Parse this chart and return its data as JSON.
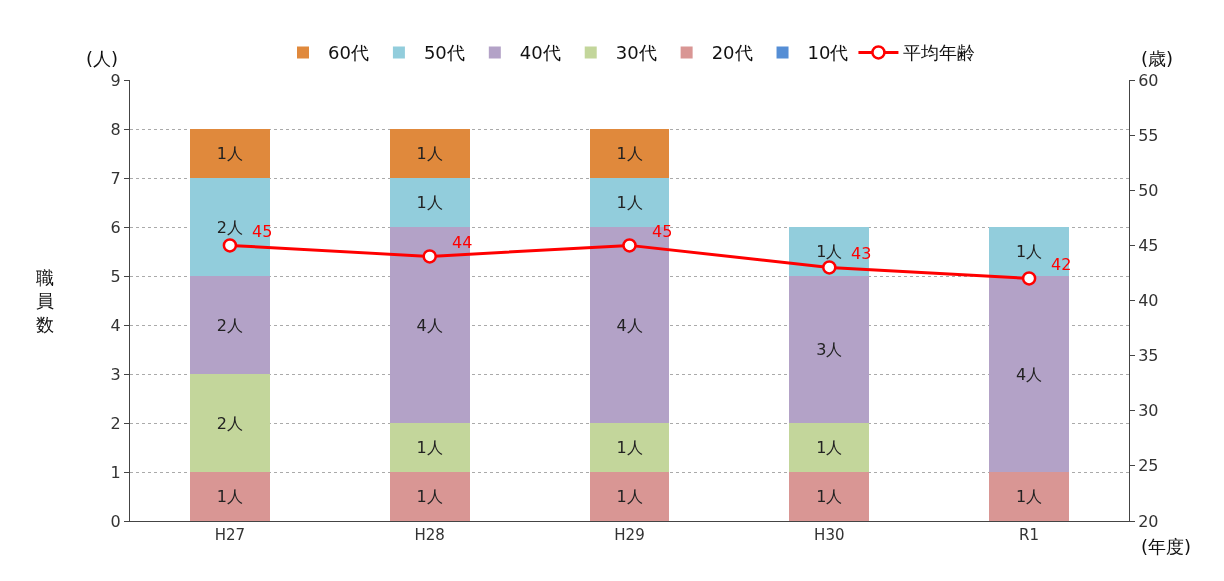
{
  "chart_data": {
    "type": "bar",
    "stacked": true,
    "categories": [
      "H27",
      "H28",
      "H29",
      "H30",
      "R1"
    ],
    "ylabel": "職員数",
    "ylim": [
      0,
      9
    ],
    "yticks": [
      0,
      1,
      2,
      3,
      4,
      5,
      6,
      7,
      8,
      9
    ],
    "y2lim": [
      20,
      60
    ],
    "y2ticks": [
      20,
      25,
      30,
      35,
      40,
      45,
      50,
      55,
      60
    ],
    "grid": "y",
    "legend": "top",
    "series": [
      {
        "name": "平均年齢",
        "type": "line",
        "axis": "y2",
        "color": "#ff0000",
        "marker": "circle",
        "values": [
          45,
          44,
          45,
          43,
          42
        ],
        "value_labels": [
          "45",
          "44",
          "45",
          "43",
          "42"
        ]
      },
      {
        "name": "10代",
        "color": "#558ed5",
        "values": [
          0,
          0,
          0,
          0,
          0
        ],
        "value_labels": [
          null,
          null,
          null,
          null,
          null
        ]
      },
      {
        "name": "20代",
        "color": "#d99694",
        "values": [
          1,
          1,
          1,
          1,
          1
        ],
        "value_labels": [
          "1人",
          "1人",
          "1人",
          "1人",
          "1人"
        ]
      },
      {
        "name": "30代",
        "color": "#c3d69b",
        "values": [
          2,
          1,
          1,
          1,
          0
        ],
        "value_labels": [
          "2人",
          "1人",
          "1人",
          "1人",
          null
        ]
      },
      {
        "name": "40代",
        "color": "#b3a2c7",
        "values": [
          2,
          4,
          4,
          3,
          4
        ],
        "value_labels": [
          "2人",
          "4人",
          "4人",
          "3人",
          "4人"
        ]
      },
      {
        "name": "50代",
        "color": "#92cddc",
        "values": [
          2,
          1,
          1,
          1,
          1
        ],
        "value_labels": [
          "2人",
          "1人",
          "1人",
          "1人",
          "1人"
        ]
      },
      {
        "name": "60代",
        "color": "#e0893c",
        "values": [
          1,
          1,
          1,
          0,
          0
        ],
        "value_labels": [
          "1人",
          "1人",
          "1人",
          null,
          null
        ]
      }
    ],
    "annotations": [
      "(人)",
      "(歳)",
      "(年度)"
    ]
  }
}
